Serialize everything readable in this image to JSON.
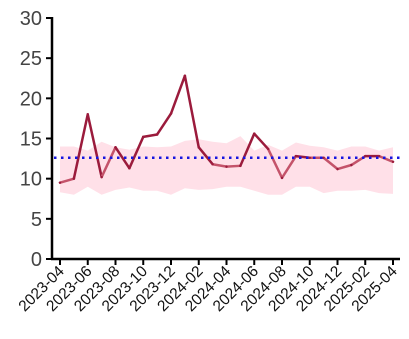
{
  "chart_data": {
    "type": "line",
    "title": "",
    "xlabel": "",
    "ylabel": "",
    "ylim": [
      0,
      30
    ],
    "y_ticks": [
      "0",
      "5",
      "10",
      "15",
      "20",
      "25",
      "30"
    ],
    "x_ticks": [
      "2023-04",
      "2023-06",
      "2023-08",
      "2023-10",
      "2023-12",
      "2024-02",
      "2024-04",
      "2024-06",
      "2024-08",
      "2024-10",
      "2024-12",
      "2025-02",
      "2025-04"
    ],
    "x": [
      "2023-04",
      "2023-05",
      "2023-06",
      "2023-07",
      "2023-08",
      "2023-09",
      "2023-10",
      "2023-11",
      "2023-12",
      "2024-01",
      "2024-02",
      "2024-03",
      "2024-04",
      "2024-05",
      "2024-06",
      "2024-07",
      "2024-08",
      "2024-09",
      "2024-10",
      "2024-11",
      "2024-12",
      "2025-01",
      "2025-02",
      "2025-03",
      "2025-04"
    ],
    "series": [
      {
        "values": [
          9.5,
          10.0,
          18.0,
          10.2,
          13.9,
          11.3,
          15.2,
          15.5,
          18.1,
          22.8,
          13.9,
          11.8,
          11.5,
          11.6,
          15.6,
          13.7,
          10.1,
          12.8,
          12.6,
          12.6,
          11.2,
          11.7,
          12.8,
          12.8,
          12.1
        ],
        "color": "#9b1b3c"
      }
    ],
    "band": {
      "upper": [
        14.0,
        14.0,
        13.5,
        14.6,
        13.9,
        13.6,
        14.0,
        13.9,
        14.0,
        14.7,
        14.9,
        14.6,
        14.4,
        15.3,
        13.5,
        14.2,
        13.5,
        14.5,
        14.1,
        13.9,
        13.5,
        14.0,
        14.0,
        13.5,
        13.9
      ],
      "lower": [
        8.3,
        8.0,
        9.0,
        8.0,
        8.6,
        8.9,
        8.5,
        8.5,
        8.0,
        8.8,
        8.6,
        8.7,
        9.0,
        9.0,
        8.5,
        8.0,
        8.0,
        9.0,
        9.0,
        8.2,
        8.5,
        8.5,
        8.6,
        8.2,
        8.1
      ],
      "color": "#ffe0e8"
    },
    "reference_line": {
      "value": 12.6,
      "style": "dotted",
      "color": "#1515e0"
    },
    "grid": false,
    "legend": "none"
  }
}
